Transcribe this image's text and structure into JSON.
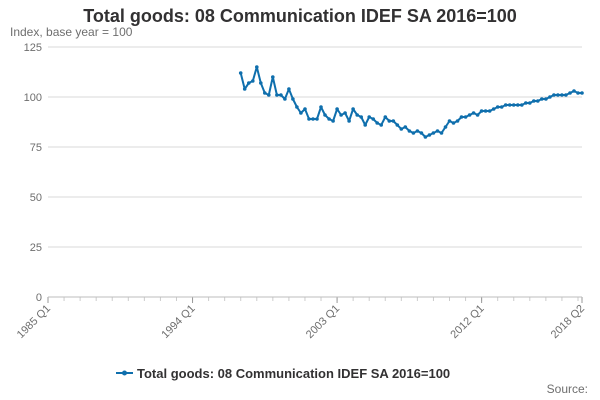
{
  "chart_data": {
    "type": "line",
    "title": "Total goods: 08 Communication IDEF SA 2016=100",
    "ylabel": "Index, base year = 100",
    "xlabel": "",
    "ylim": [
      0,
      125
    ],
    "yticks": [
      0,
      25,
      50,
      75,
      100,
      125
    ],
    "xlim": [
      1985.0,
      2018.25
    ],
    "xticks": [
      {
        "label": "1985 Q1",
        "value": 1985.0
      },
      {
        "label": "1994 Q1",
        "value": 1994.0
      },
      {
        "label": "2003 Q1",
        "value": 2003.0
      },
      {
        "label": "2012 Q1",
        "value": 2012.0
      },
      {
        "label": "2018 Q2",
        "value": 2018.25
      }
    ],
    "legend": "bottom",
    "color": "#0f6fad",
    "series": [
      {
        "name": "Total goods: 08 Communication IDEF SA 2016=100",
        "x": [
          1997.0,
          1997.25,
          1997.5,
          1997.75,
          1998.0,
          1998.25,
          1998.5,
          1998.75,
          1999.0,
          1999.25,
          1999.5,
          1999.75,
          2000.0,
          2000.25,
          2000.5,
          2000.75,
          2001.0,
          2001.25,
          2001.5,
          2001.75,
          2002.0,
          2002.25,
          2002.5,
          2002.75,
          2003.0,
          2003.25,
          2003.5,
          2003.75,
          2004.0,
          2004.25,
          2004.5,
          2004.75,
          2005.0,
          2005.25,
          2005.5,
          2005.75,
          2006.0,
          2006.25,
          2006.5,
          2006.75,
          2007.0,
          2007.25,
          2007.5,
          2007.75,
          2008.0,
          2008.25,
          2008.5,
          2008.75,
          2009.0,
          2009.25,
          2009.5,
          2009.75,
          2010.0,
          2010.25,
          2010.5,
          2010.75,
          2011.0,
          2011.25,
          2011.5,
          2011.75,
          2012.0,
          2012.25,
          2012.5,
          2012.75,
          2013.0,
          2013.25,
          2013.5,
          2013.75,
          2014.0,
          2014.25,
          2014.5,
          2014.75,
          2015.0,
          2015.25,
          2015.5,
          2015.75,
          2016.0,
          2016.25,
          2016.5,
          2016.75,
          2017.0,
          2017.25,
          2017.5,
          2017.75,
          2018.0,
          2018.25
        ],
        "values": [
          112,
          104,
          107,
          108,
          115,
          107,
          102,
          101,
          110,
          101,
          101,
          99,
          104,
          99,
          95,
          92,
          94,
          89,
          89,
          89,
          95,
          91,
          89,
          88,
          94,
          91,
          92,
          88,
          94,
          91,
          90,
          86,
          90,
          89,
          87,
          86,
          90,
          88,
          88,
          86,
          84,
          85,
          83,
          82,
          83,
          82,
          80,
          81,
          82,
          83,
          82,
          85,
          88,
          87,
          88,
          90,
          90,
          91,
          92,
          91,
          93,
          93,
          93,
          94,
          95,
          95,
          96,
          96,
          96,
          96,
          96,
          97,
          97,
          98,
          98,
          99,
          99,
          100,
          101,
          101,
          101,
          101,
          102,
          103,
          102,
          102
        ]
      }
    ]
  },
  "source_label": "Source:"
}
